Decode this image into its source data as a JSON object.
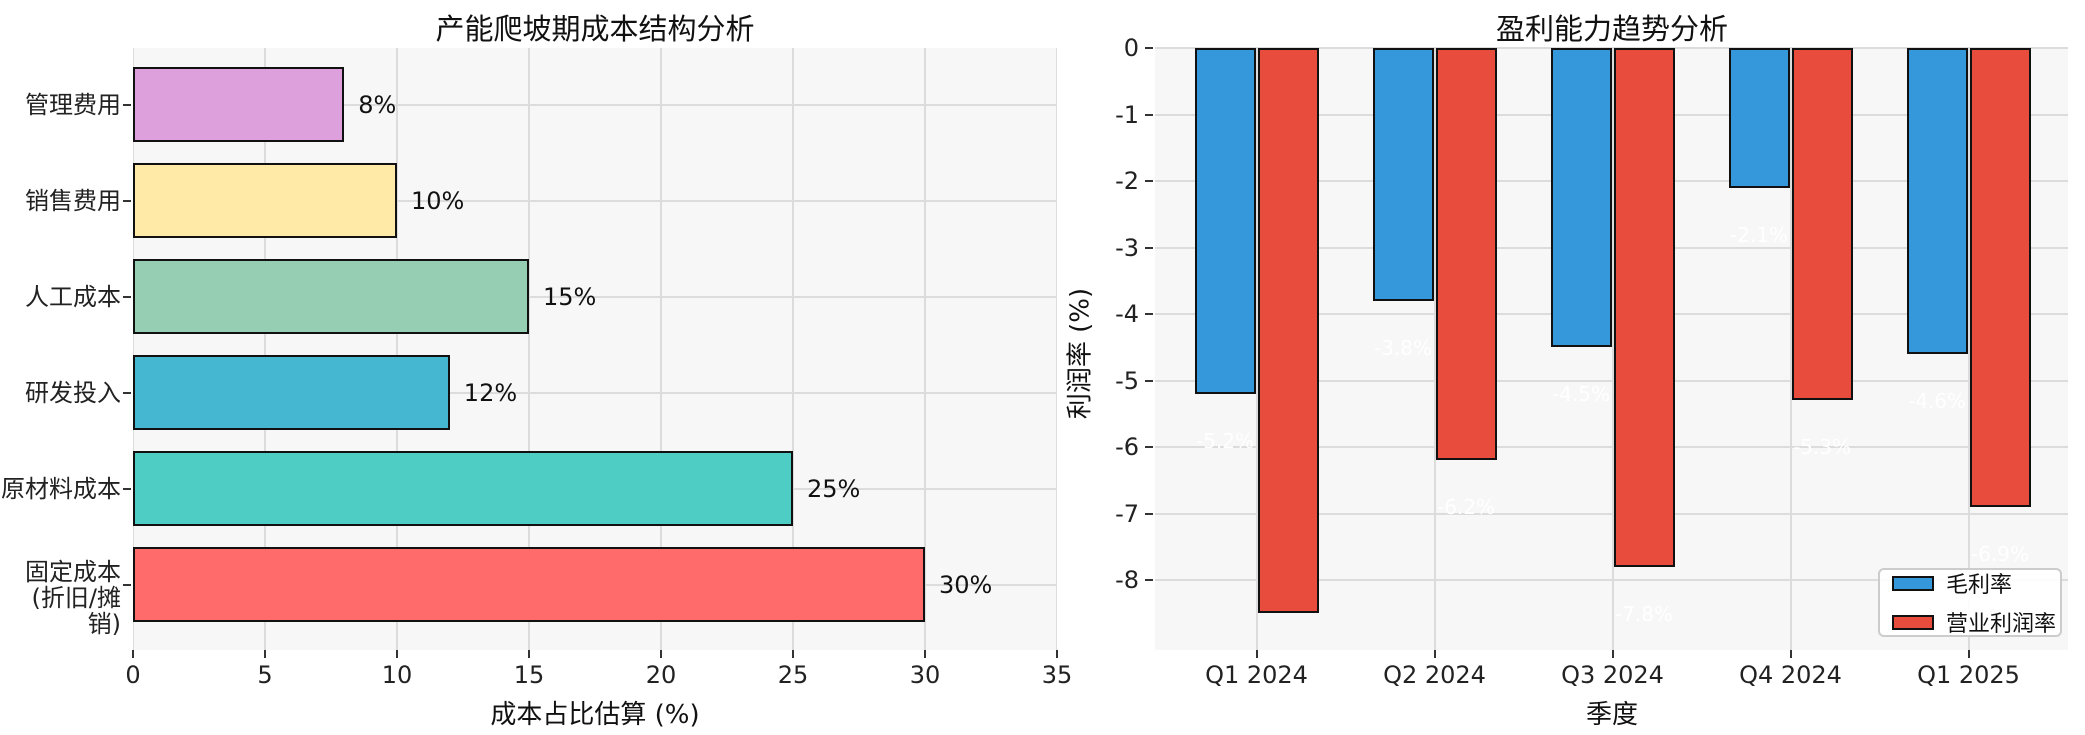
{
  "figure": {
    "background": "#ffffff",
    "plot_background": "#f7f7f7",
    "grid_color": "#dcdcdc"
  },
  "chart_data": [
    {
      "type": "bar",
      "orientation": "horizontal",
      "title": "产能爬坡期成本结构分析",
      "xlabel": "成本占比估算 (%)",
      "ylabel": "",
      "categories": [
        "管理费用",
        "销售费用",
        "人工成本",
        "研发投入",
        "原材料成本",
        "固定成本\n(折旧/摊销)"
      ],
      "values": [
        8,
        10,
        15,
        12,
        25,
        30
      ],
      "bar_labels": [
        "8%",
        "10%",
        "15%",
        "12%",
        "25%",
        "30%"
      ],
      "bar_colors": [
        "#DDA0DD",
        "#FFEAA7",
        "#96CEB4",
        "#45B7D1",
        "#4ECDC4",
        "#FF6B6B"
      ],
      "bar_edge_color": "#111111",
      "xlim": [
        0,
        35
      ],
      "xticks": [
        0,
        5,
        10,
        15,
        20,
        25,
        30,
        35
      ],
      "grid": true,
      "legend_position": "none"
    },
    {
      "type": "bar",
      "orientation": "vertical",
      "title": "盈利能力趋势分析",
      "xlabel": "季度",
      "ylabel": "利润率 (%)",
      "categories": [
        "Q1 2024",
        "Q2 2024",
        "Q3 2024",
        "Q4 2024",
        "Q1 2025"
      ],
      "series": [
        {
          "name": "毛利率",
          "color": "#3498db",
          "values": [
            -5.2,
            -3.8,
            -4.5,
            -2.1,
            -4.6
          ],
          "labels": [
            "-5.2%",
            "-3.8%",
            "-4.5%",
            "-2.1%",
            "-4.6%"
          ]
        },
        {
          "name": "营业利润率",
          "color": "#e74c3c",
          "values": [
            -8.5,
            -6.2,
            -7.8,
            -5.3,
            -6.9
          ],
          "labels": [
            "-8.5%",
            "-6.2%",
            "-7.8%",
            "-5.3%",
            "-6.9%"
          ]
        }
      ],
      "value_label_color": "#ffffff",
      "ylim": [
        -9.06,
        0
      ],
      "yticks": [
        0,
        -1,
        -2,
        -3,
        -4,
        -5,
        -6,
        -7,
        -8
      ],
      "grid": true,
      "legend_position": "lower right"
    }
  ]
}
